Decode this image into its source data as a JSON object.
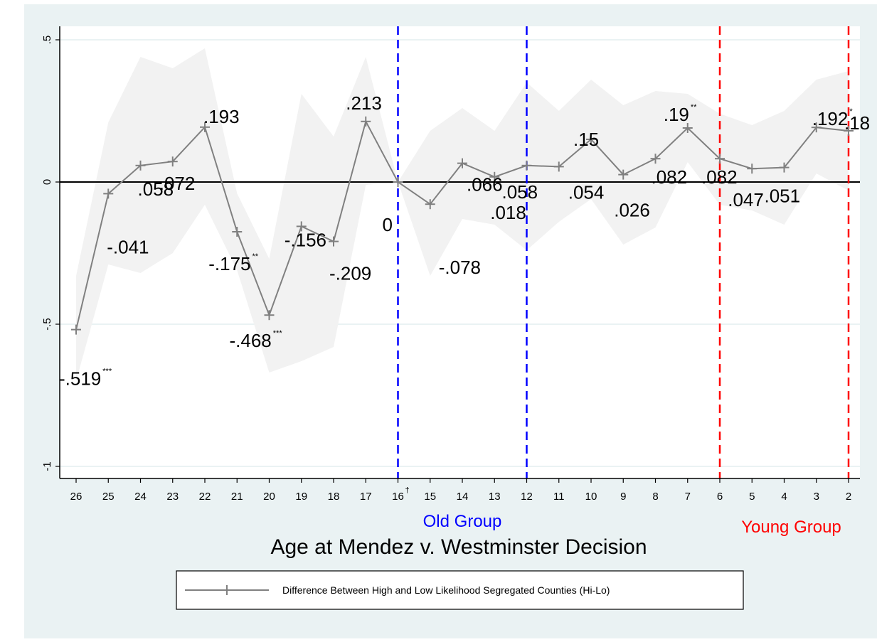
{
  "chart_data": {
    "type": "line",
    "x": [
      26,
      25,
      24,
      23,
      22,
      21,
      20,
      19,
      18,
      17,
      16,
      15,
      14,
      13,
      12,
      11,
      10,
      9,
      8,
      7,
      6,
      5,
      4,
      3,
      2
    ],
    "series": [
      {
        "name": "Difference Between High and Low Likelihood Segregated Counties (Hi-Lo)",
        "values": [
          -0.519,
          -0.041,
          0.058,
          0.072,
          0.193,
          -0.175,
          -0.468,
          -0.156,
          -0.209,
          0.213,
          0,
          -0.078,
          0.066,
          0.018,
          0.058,
          0.054,
          0.15,
          0.026,
          0.082,
          0.19,
          0.082,
          0.047,
          0.051,
          0.192,
          0.18
        ],
        "ci_upper": [
          -0.33,
          0.21,
          0.44,
          0.4,
          0.47,
          -0.04,
          -0.27,
          0.31,
          0.16,
          0.44,
          0,
          0.18,
          0.26,
          0.18,
          0.35,
          0.25,
          0.36,
          0.27,
          0.32,
          0.31,
          0.24,
          0.2,
          0.25,
          0.36,
          0.39
        ],
        "ci_lower": [
          -0.7,
          -0.29,
          -0.32,
          -0.25,
          -0.08,
          -0.31,
          -0.67,
          -0.63,
          -0.58,
          -0.01,
          0,
          -0.33,
          -0.13,
          -0.15,
          -0.24,
          -0.14,
          -0.06,
          -0.22,
          -0.16,
          0.07,
          -0.08,
          -0.1,
          -0.15,
          0.03,
          -0.03
        ],
        "color": "#808080"
      }
    ],
    "point_labels": [
      ".519",
      ".041",
      ".058",
      ".072",
      ".193",
      ".175",
      ".468",
      ".156",
      ".209",
      ".213",
      "0",
      ".078",
      ".066",
      ".018",
      ".058",
      ".054",
      ".15",
      ".026",
      ".082",
      ".19",
      ".082",
      ".047",
      ".051",
      ".192",
      ".18"
    ],
    "label_signs": [
      "-",
      "-",
      "",
      "",
      "",
      "-",
      "-",
      "-",
      "-",
      "",
      "",
      "-",
      "",
      "",
      "",
      "",
      "",
      "",
      "",
      "",
      "",
      "",
      "",
      "",
      ""
    ],
    "significance": [
      "***",
      "",
      "",
      "",
      "",
      "**",
      "***",
      "",
      "",
      "",
      "",
      "",
      "",
      "",
      "",
      "",
      "",
      "",
      "",
      "**",
      "",
      "",
      "",
      "*",
      ""
    ],
    "x_tick_labels": [
      "26",
      "25",
      "24",
      "23",
      "22",
      "21",
      "20",
      "19",
      "18",
      "17",
      "16",
      "15",
      "14",
      "13",
      "12",
      "11",
      "10",
      "9",
      "8",
      "7",
      "6",
      "5",
      "4",
      "3",
      "2"
    ],
    "x_tick_marks": [
      "",
      "",
      "",
      "",
      "",
      "",
      "",
      "",
      "",
      "",
      "†",
      "",
      "",
      "",
      "",
      "",
      "",
      "",
      "",
      "",
      "",
      "",
      "",
      "",
      ""
    ],
    "y_ticks": [
      -1,
      -0.5,
      0,
      0.5
    ],
    "y_tick_labels": [
      "-1",
      "-.5",
      "0",
      ".5"
    ],
    "ylim": [
      -1.05,
      0.55
    ],
    "xlabel": "Age at Mendez v. Westminster Decision",
    "ylabel": "",
    "title": "",
    "vertical_lines": [
      {
        "x": 16,
        "color": "#0000ff"
      },
      {
        "x": 12,
        "color": "#0000ff"
      },
      {
        "x": 6,
        "color": "#ff0000"
      },
      {
        "x": 2,
        "color": "#ff0000"
      }
    ],
    "group_labels": [
      {
        "text": "Old Group",
        "color": "#0000ff"
      },
      {
        "text": "Young Group",
        "color": "#ff0000"
      }
    ],
    "grid": true,
    "legend_position": "bottom",
    "colors": {
      "background": "#eaf2f3",
      "plot_area": "#ffffff",
      "line": "#808080",
      "ci_band": "#f2f2f2",
      "zero_line": "#000000",
      "grid": "#eaf2f3"
    }
  }
}
